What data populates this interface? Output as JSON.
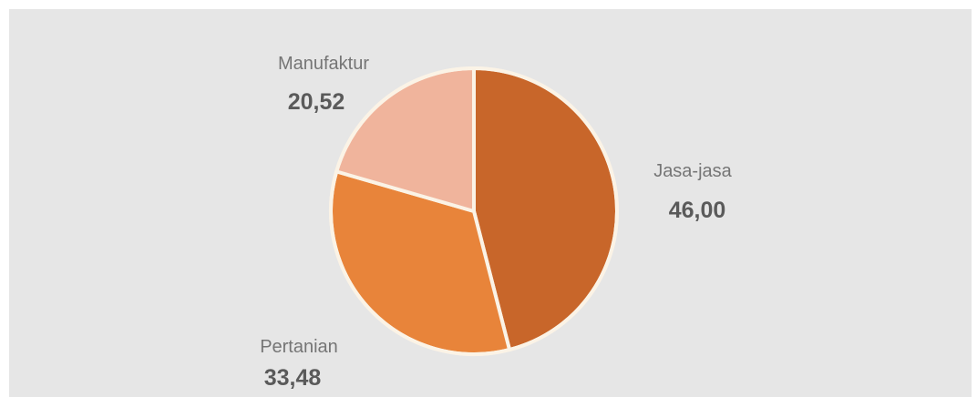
{
  "chart_data": {
    "type": "pie",
    "slices": [
      {
        "label": "Jasa-jasa",
        "value_label": "46,00",
        "value": 46.0,
        "color": "#c8662a"
      },
      {
        "label": "Pertanian",
        "value_label": "33,48",
        "value": 33.48,
        "color": "#e8843a"
      },
      {
        "label": "Manufaktur",
        "value_label": "20,52",
        "value": 20.52,
        "color": "#f0b49c"
      }
    ],
    "start_angle_deg": 0,
    "direction": "clockwise",
    "background": "#e6e6e6",
    "slice_border_color": "#fbf3e6"
  }
}
